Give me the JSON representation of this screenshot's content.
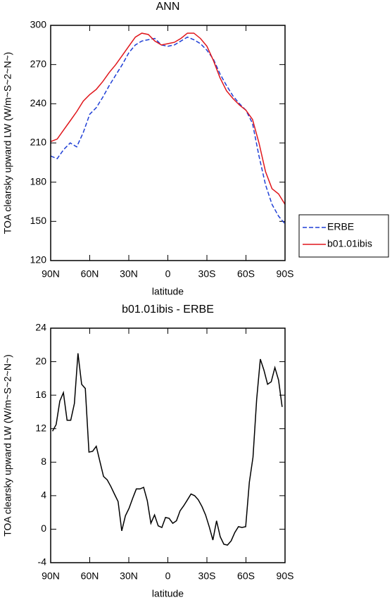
{
  "chart_data": [
    {
      "type": "line",
      "title": "ANN",
      "xlabel": "latitude",
      "ylabel": "TOA clearsky upward LW (W/m~S~2~N~)",
      "x": [
        90,
        85,
        80,
        75,
        70,
        65,
        60,
        55,
        50,
        45,
        40,
        35,
        30,
        25,
        20,
        15,
        10,
        5,
        0,
        -5,
        -10,
        -15,
        -20,
        -25,
        -30,
        -35,
        -40,
        -45,
        -50,
        -55,
        -60,
        -65,
        -70,
        -75,
        -80,
        -85,
        -90
      ],
      "series": [
        {
          "name": "ERBE",
          "color": "#1f3fd6",
          "linestyle": "dashed",
          "values": [
            200,
            198,
            205,
            210,
            207,
            218,
            232,
            237,
            245,
            254,
            262,
            270,
            279,
            285,
            288,
            289,
            290,
            285,
            284,
            285,
            288,
            291,
            289,
            286,
            281,
            274,
            263,
            254,
            246,
            240,
            235,
            225,
            200,
            178,
            163,
            154,
            148
          ]
        },
        {
          "name": "b01.01ibis",
          "color": "#e0161b",
          "linestyle": "solid",
          "values": [
            211,
            213,
            220,
            227,
            234,
            242,
            247,
            251,
            257,
            264,
            270,
            277,
            284,
            291,
            294,
            293,
            288,
            285,
            286,
            287,
            290,
            294,
            294,
            290,
            284,
            273,
            260,
            250,
            244,
            239,
            235,
            228,
            210,
            188,
            175,
            171,
            163
          ]
        }
      ],
      "xlim": [
        90,
        -90
      ],
      "xticks": [
        {
          "value": 90,
          "label": "90N"
        },
        {
          "value": 60,
          "label": "60N"
        },
        {
          "value": 30,
          "label": "30N"
        },
        0,
        {
          "value": -30,
          "label": "30S"
        },
        {
          "value": -60,
          "label": "60S"
        },
        {
          "value": -90,
          "label": "90S"
        }
      ],
      "ylim": [
        120,
        300
      ],
      "yticks": [
        120,
        150,
        180,
        210,
        240,
        270,
        300
      ],
      "legend": "right"
    },
    {
      "type": "line",
      "title": "b01.01ibis - ERBE",
      "xlabel": "latitude",
      "ylabel": "TOA clearsky upward LW (W/m~S~2~N~)",
      "x": [
        88.6,
        85.8,
        83.0,
        80.2,
        77.4,
        74.6,
        71.8,
        69.0,
        66.2,
        63.4,
        60.6,
        57.8,
        55.0,
        52.2,
        49.4,
        46.6,
        43.8,
        41.0,
        38.2,
        35.4,
        32.6,
        29.8,
        27.0,
        24.2,
        21.4,
        18.6,
        15.8,
        13.0,
        10.2,
        7.4,
        4.6,
        1.8,
        -1.0,
        -3.8,
        -6.6,
        -9.4,
        -12.2,
        -15.0,
        -17.8,
        -20.6,
        -23.4,
        -26.2,
        -29.0,
        -31.8,
        -34.6,
        -37.4,
        -40.2,
        -43.0,
        -45.8,
        -48.6,
        -51.4,
        -54.2,
        -57.0,
        -59.8,
        -62.6,
        -65.4,
        -68.2,
        -71.0,
        -73.8,
        -76.6,
        -79.4,
        -82.2,
        -85.0,
        -87.8
      ],
      "color": "#000000",
      "values": [
        11.7,
        12.5,
        15.3,
        16.3,
        13.0,
        13.0,
        15.0,
        21.0,
        17.3,
        16.8,
        9.2,
        9.3,
        9.9,
        8.1,
        6.3,
        5.9,
        5.1,
        4.2,
        3.3,
        -0.2,
        1.6,
        2.5,
        3.7,
        4.8,
        4.8,
        5.0,
        3.4,
        0.7,
        1.7,
        0.4,
        0.2,
        1.4,
        1.3,
        0.7,
        1.0,
        2.2,
        2.8,
        3.5,
        4.2,
        4.0,
        3.5,
        2.7,
        1.7,
        0.3,
        -1.3,
        1.0,
        -0.9,
        -1.8,
        -1.9,
        -1.4,
        -0.4,
        0.3,
        0.2,
        0.3,
        5.6,
        8.6,
        15.5,
        20.3,
        19.0,
        17.3,
        17.6,
        19.3,
        17.8,
        14.6
      ],
      "xlim": [
        90,
        -90
      ],
      "xticks": [
        {
          "value": 90,
          "label": "90N"
        },
        {
          "value": 60,
          "label": "60N"
        },
        {
          "value": 30,
          "label": "30N"
        },
        0,
        {
          "value": -30,
          "label": "30S"
        },
        {
          "value": -60,
          "label": "60S"
        },
        {
          "value": -90,
          "label": "90S"
        }
      ],
      "ylim": [
        -4,
        24
      ],
      "yticks": [
        -4,
        0,
        4,
        8,
        12,
        16,
        20,
        24
      ]
    }
  ]
}
